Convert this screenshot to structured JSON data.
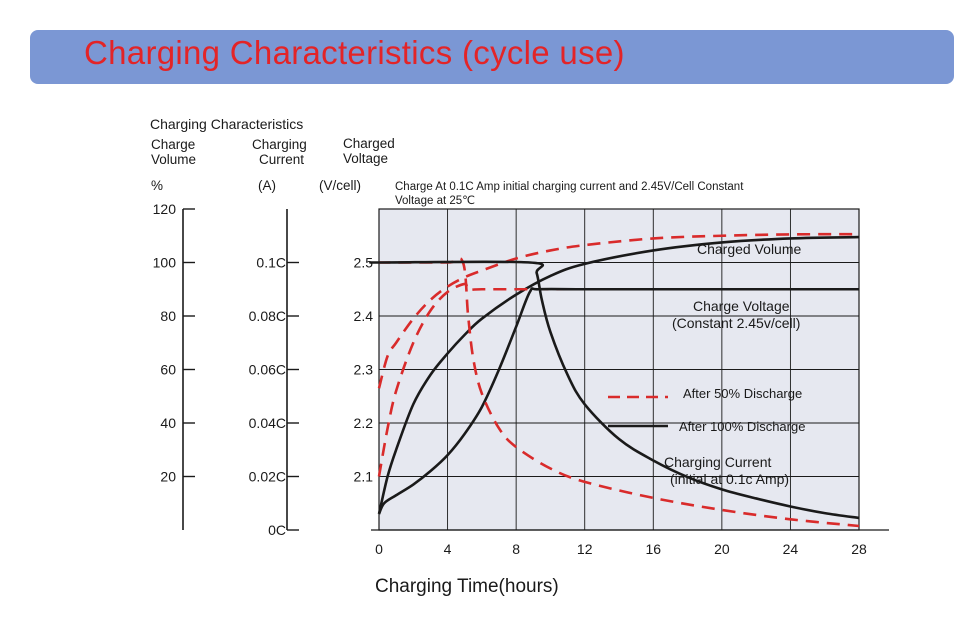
{
  "page": {
    "title": "Charging Characteristics (cycle use)"
  },
  "chart_data": {
    "type": "line",
    "title": "Charging Characteristics",
    "note": [
      "Charge At 0.1C Amp initial charging current  and 2.45V/Cell Constant",
      "Voltage  at 25℃"
    ],
    "xlabel": "Charging Time(hours)",
    "x_ticks": [
      "0",
      "4",
      "8",
      "12",
      "16",
      "20",
      "24",
      "28"
    ],
    "xlim": [
      0,
      28
    ],
    "grid": true,
    "axes": {
      "volume": {
        "label": [
          "Charge",
          "Volume"
        ],
        "unit": "%",
        "ticks": [
          "120",
          "100",
          "80",
          "60",
          "40",
          "20"
        ],
        "range": [
          0,
          120
        ]
      },
      "current": {
        "label": [
          "Charging",
          "Current"
        ],
        "unit": "(A)",
        "ticks": [
          "0.1C",
          "0.08C",
          "0.06C",
          "0.04C",
          "0.02C",
          "0C"
        ],
        "range": [
          0,
          0.12
        ]
      },
      "voltage": {
        "label": [
          "Charged",
          "Voltage"
        ],
        "unit": "(V/cell)",
        "ticks": [
          "2.5",
          "2.4",
          "2.3",
          "2.2",
          "2.1"
        ],
        "range": [
          2.0,
          2.6
        ]
      }
    },
    "legend": {
      "placement": "right",
      "entries": [
        {
          "label": "After 50% Discharge",
          "style": "dashed",
          "color": "#d92b2b"
        },
        {
          "label": "After 100% Discharge",
          "style": "solid",
          "color": "#1a1a1a"
        }
      ]
    },
    "annotations": {
      "volume": "Charged Volume",
      "voltage": [
        "Charge Voltage",
        "(Constant 2.45v/cell)"
      ],
      "current": [
        "Charging Current",
        "(initial at 0.1c Amp)"
      ]
    },
    "series": [
      {
        "group": "volume",
        "condition": "50%",
        "style": "dashed",
        "color": "#d92b2b",
        "x": [
          0,
          0.5,
          1,
          2,
          3,
          4,
          5,
          6,
          8,
          10,
          12,
          16,
          20,
          24,
          28
        ],
        "y": [
          53,
          65,
          70,
          79,
          86,
          91,
          94.5,
          97,
          101.5,
          104.5,
          106.5,
          109,
          110,
          110.5,
          110.6
        ]
      },
      {
        "group": "volume",
        "condition": "100%",
        "style": "solid",
        "color": "#1a1a1a",
        "x": [
          0,
          0.5,
          1,
          2,
          3,
          4,
          5,
          6,
          8,
          10,
          12,
          16,
          20,
          24,
          28
        ],
        "y": [
          6,
          20,
          30,
          47,
          58,
          66,
          73,
          79,
          88,
          95,
          99.5,
          104.5,
          107.5,
          109,
          109.5
        ]
      },
      {
        "group": "voltage",
        "condition": "50%",
        "style": "dashed",
        "color": "#d92b2b",
        "x": [
          0,
          0.5,
          1,
          2,
          3,
          4,
          5,
          5.2,
          6,
          8,
          12,
          16,
          20,
          24,
          28
        ],
        "y": [
          2.1,
          2.19,
          2.26,
          2.35,
          2.41,
          2.445,
          2.46,
          2.45,
          2.45,
          2.45,
          2.45,
          2.45,
          2.45,
          2.45,
          2.45
        ]
      },
      {
        "group": "voltage",
        "condition": "100%",
        "style": "solid",
        "color": "#1a1a1a",
        "x": [
          0,
          0.3,
          1,
          2,
          3,
          4,
          5,
          6,
          7,
          8,
          8.8,
          9.3,
          12,
          16,
          20,
          24,
          28
        ],
        "y": [
          2.03,
          2.05,
          2.065,
          2.085,
          2.11,
          2.14,
          2.18,
          2.23,
          2.3,
          2.38,
          2.445,
          2.45,
          2.45,
          2.45,
          2.45,
          2.45,
          2.45
        ]
      },
      {
        "group": "current",
        "condition": "50%",
        "style": "dashed",
        "color": "#d92b2b",
        "x": [
          0,
          0.15,
          0.5,
          4,
          4.9,
          5.2,
          5.5,
          6,
          7,
          8,
          10,
          12,
          16,
          20,
          24,
          28
        ],
        "y": [
          0.1,
          0.1,
          0.1,
          0.1,
          0.1,
          0.08,
          0.064,
          0.051,
          0.038,
          0.031,
          0.023,
          0.018,
          0.012,
          0.0075,
          0.004,
          0.0015
        ]
      },
      {
        "group": "current",
        "condition": "100%",
        "style": "solid",
        "color": "#1a1a1a",
        "x": [
          0,
          0.2,
          8.8,
          9.2,
          9.5,
          10,
          11,
          12,
          14,
          16,
          18,
          20,
          22,
          24,
          26,
          28
        ],
        "y": [
          0.1,
          0.1,
          0.1,
          0.096,
          0.086,
          0.074,
          0.058,
          0.047,
          0.034,
          0.026,
          0.0198,
          0.0152,
          0.0118,
          0.0088,
          0.0063,
          0.0045
        ]
      }
    ]
  }
}
